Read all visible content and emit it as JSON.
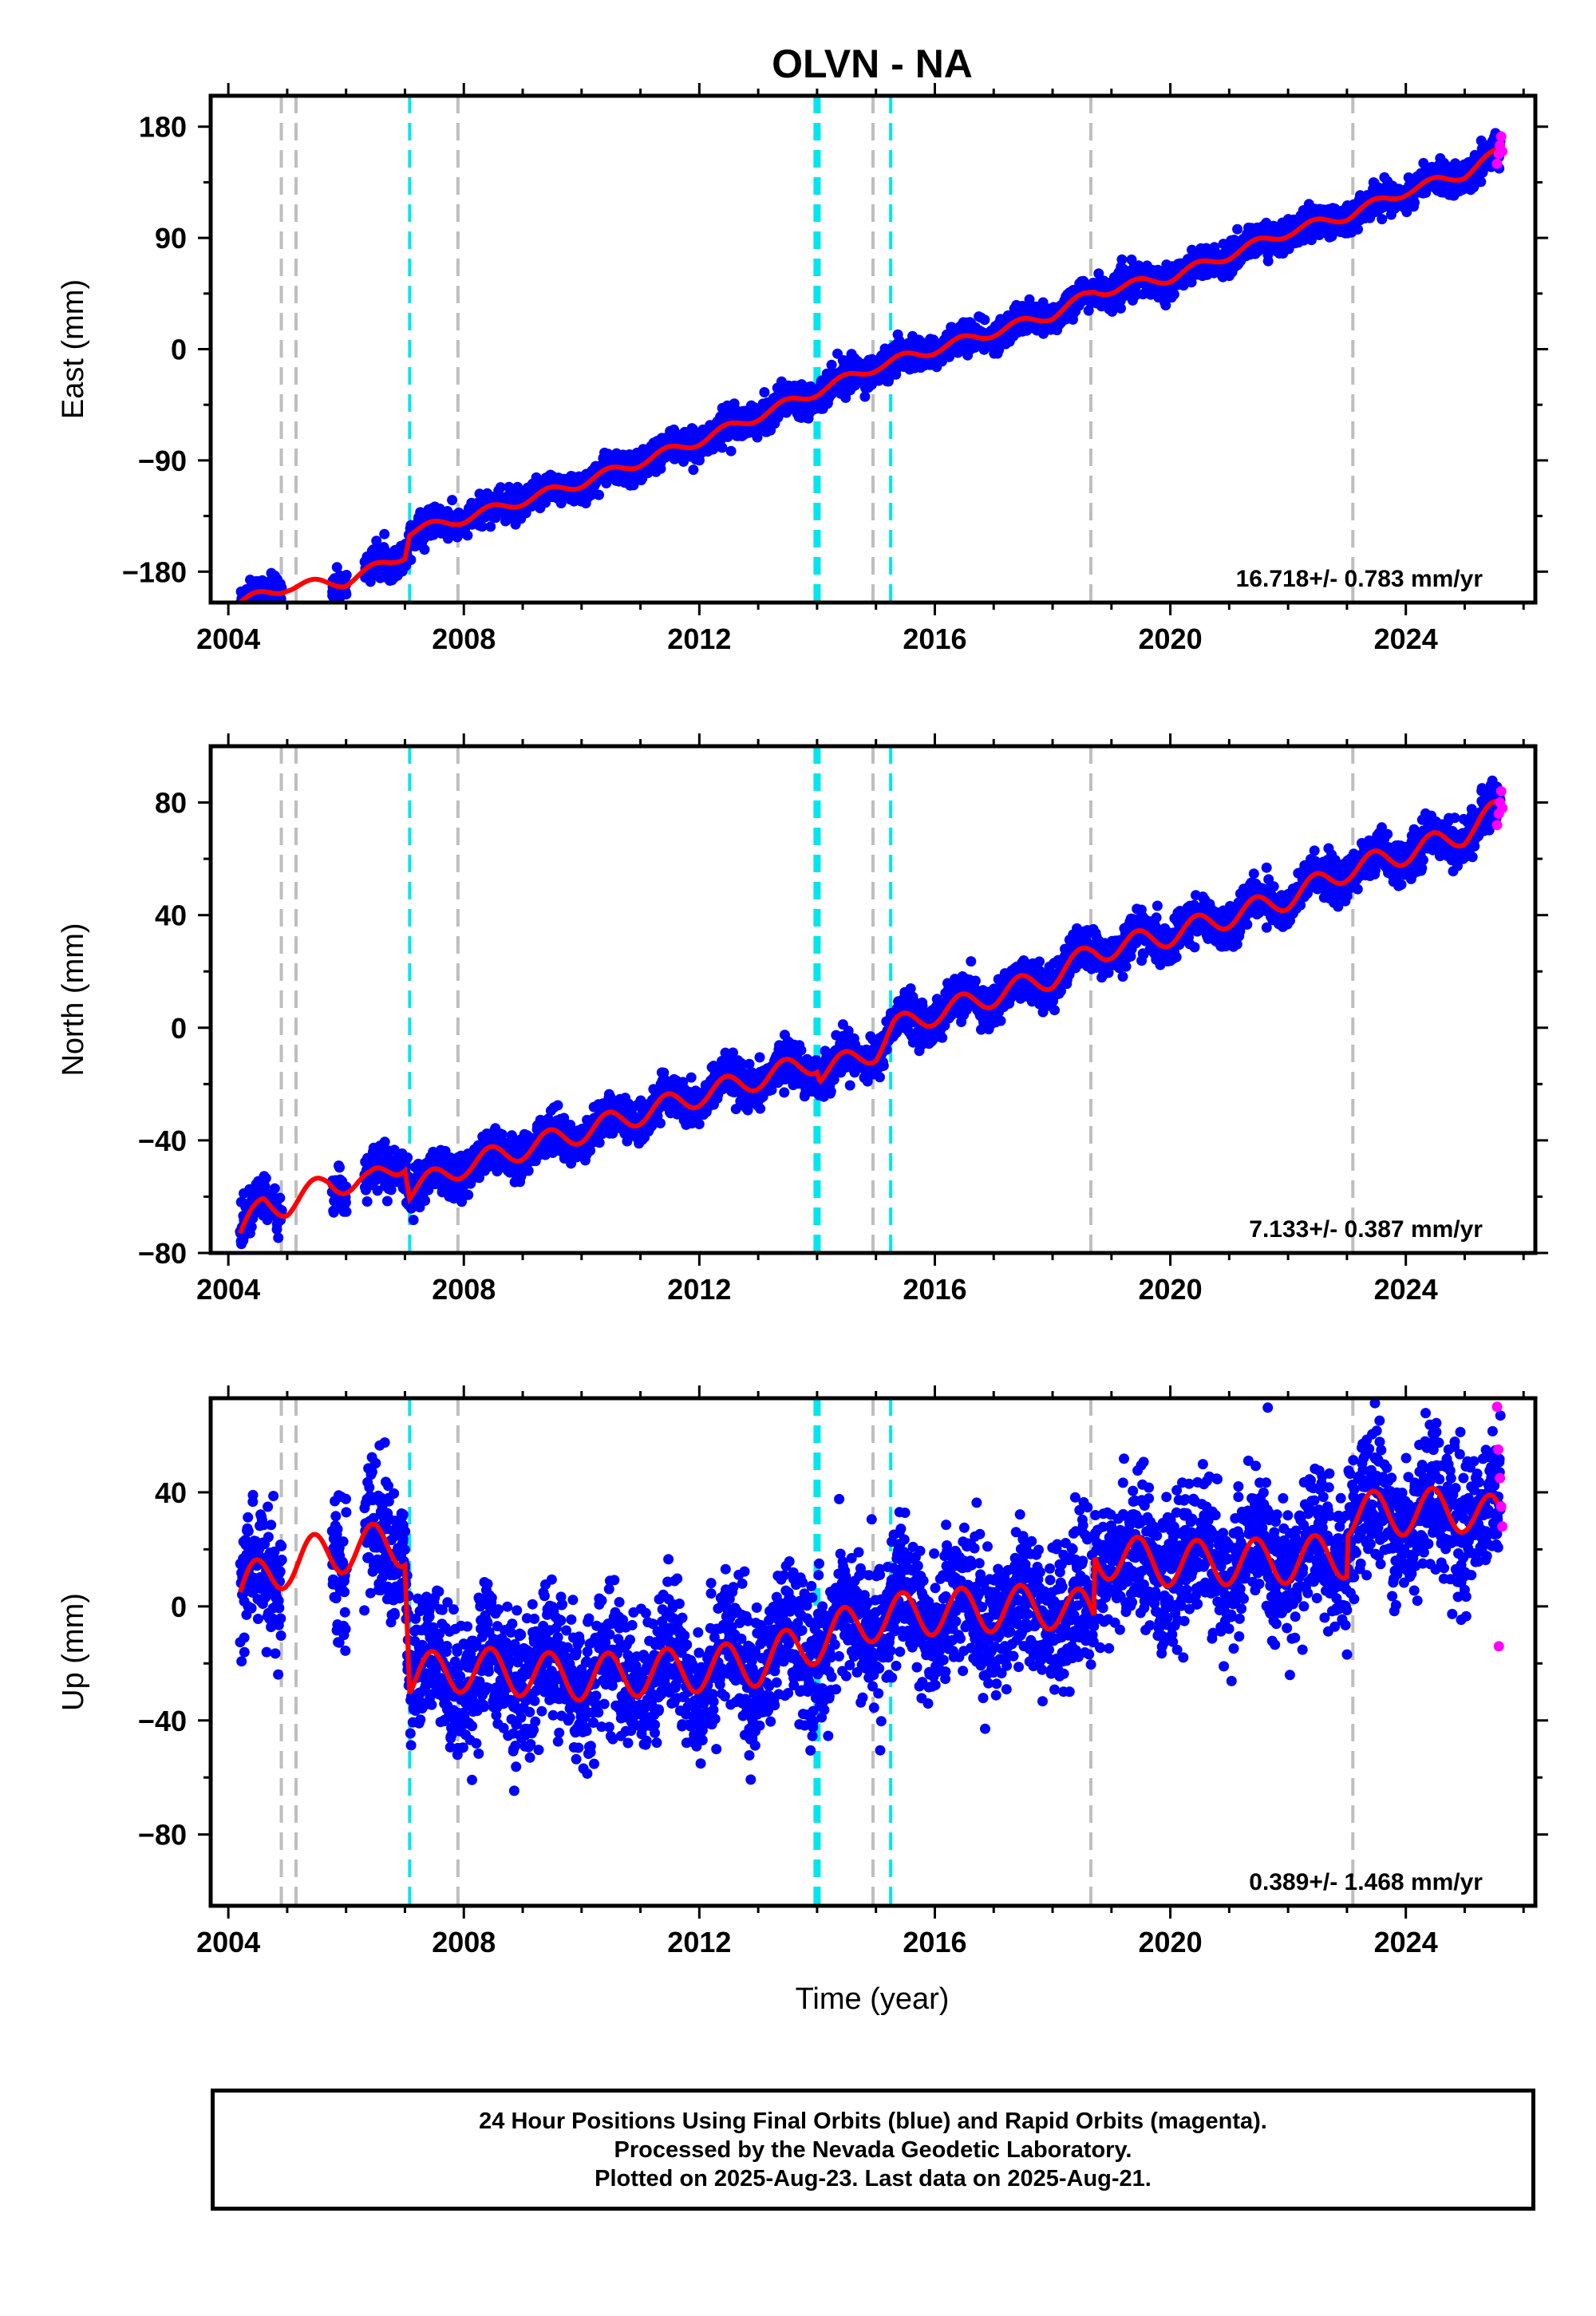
{
  "title": "OLVN - NA",
  "x_axis_label": "Time (year)",
  "colors": {
    "final_orbits": "#0000ff",
    "rapid_orbits": "#ff00ff",
    "model_fit": "#ff0000",
    "cyan_event": "#00e5ee",
    "gray_event": "#bebebe",
    "background": "#ffffff"
  },
  "chart_data": [
    {
      "type": "scatter",
      "name": "east",
      "ylabel": "East (mm)",
      "xlim": [
        2003.7,
        2026.2
      ],
      "ylim": [
        -205,
        205
      ],
      "x_ticks": [
        2004,
        2008,
        2012,
        2016,
        2020,
        2024
      ],
      "y_ticks": [
        180,
        90,
        0,
        -90,
        -180
      ],
      "y_tick_labels": [
        "180",
        "90",
        "0",
        "−90",
        "−180"
      ],
      "rate_label": "16.718+/- 0.783 mm/yr",
      "series": [
        {
          "name": "Final Orbits",
          "color": "#0000ff"
        },
        {
          "name": "Rapid Orbits",
          "color": "#ff00ff"
        },
        {
          "name": "Model",
          "color": "#ff0000"
        }
      ],
      "trend_points": [
        [
          2004.2,
          -205
        ],
        [
          2005.0,
          -192
        ],
        [
          2006.0,
          -188
        ],
        [
          2007.0,
          -166
        ],
        [
          2007.08,
          -148
        ],
        [
          2008.0,
          -137
        ],
        [
          2010.0,
          -108
        ],
        [
          2012.0,
          -74
        ],
        [
          2014.0,
          -34
        ],
        [
          2015.0,
          -14
        ],
        [
          2016.0,
          0
        ],
        [
          2018.0,
          28
        ],
        [
          2018.7,
          46
        ],
        [
          2020.0,
          58
        ],
        [
          2022.0,
          95
        ],
        [
          2023.0,
          108
        ],
        [
          2024.0,
          128
        ],
        [
          2025.0,
          142
        ],
        [
          2025.6,
          160
        ]
      ],
      "seasonal_amplitude": 4,
      "scatter_sigma": 6,
      "rapid_points": [
        [
          2025.55,
          150
        ],
        [
          2025.58,
          158
        ],
        [
          2025.6,
          165
        ],
        [
          2025.62,
          172
        ],
        [
          2025.64,
          160
        ]
      ]
    },
    {
      "type": "scatter",
      "name": "north",
      "ylabel": "North (mm)",
      "xlim": [
        2003.7,
        2026.2
      ],
      "ylim": [
        -80,
        100
      ],
      "x_ticks": [
        2004,
        2008,
        2012,
        2016,
        2020,
        2024
      ],
      "y_ticks": [
        80,
        40,
        0,
        -40,
        -80
      ],
      "y_tick_labels": [
        "80",
        "40",
        "0",
        "−40",
        "−80"
      ],
      "rate_label": "7.133+/- 0.387 mm/yr",
      "series": [
        {
          "name": "Final Orbits",
          "color": "#0000ff"
        },
        {
          "name": "Rapid Orbits",
          "color": "#ff00ff"
        },
        {
          "name": "Model",
          "color": "#ff0000"
        }
      ],
      "trend_points": [
        [
          2004.2,
          -73
        ],
        [
          2004.6,
          -63
        ],
        [
          2005.0,
          -63
        ],
        [
          2005.7,
          -55
        ],
        [
          2006.4,
          -55
        ],
        [
          2007.0,
          -47
        ],
        [
          2007.08,
          -58
        ],
        [
          2008.0,
          -49
        ],
        [
          2010.0,
          -37
        ],
        [
          2012.0,
          -24
        ],
        [
          2014.0,
          -12
        ],
        [
          2014.05,
          -16
        ],
        [
          2015.0,
          -8
        ],
        [
          2015.3,
          0
        ],
        [
          2016.0,
          5
        ],
        [
          2018.0,
          18
        ],
        [
          2018.7,
          27
        ],
        [
          2020.0,
          33
        ],
        [
          2022.0,
          46
        ],
        [
          2023.0,
          56
        ],
        [
          2024.0,
          62
        ],
        [
          2025.0,
          69
        ],
        [
          2025.6,
          78
        ]
      ],
      "seasonal_amplitude": 4,
      "scatter_sigma": 3.5,
      "rapid_points": [
        [
          2025.55,
          72
        ],
        [
          2025.58,
          76
        ],
        [
          2025.6,
          80
        ],
        [
          2025.62,
          84
        ],
        [
          2025.64,
          78
        ]
      ]
    },
    {
      "type": "scatter",
      "name": "up",
      "ylabel": "Up (mm)",
      "xlim": [
        2003.7,
        2026.2
      ],
      "ylim": [
        -105,
        73
      ],
      "x_ticks": [
        2004,
        2008,
        2012,
        2016,
        2020,
        2024
      ],
      "y_ticks": [
        40,
        0,
        -40,
        -80
      ],
      "y_tick_labels": [
        "40",
        "0",
        "−40",
        "−80"
      ],
      "rate_label": "0.389+/- 1.468 mm/yr",
      "series": [
        {
          "name": "Final Orbits",
          "color": "#0000ff"
        },
        {
          "name": "Rapid Orbits",
          "color": "#ff00ff"
        },
        {
          "name": "Model",
          "color": "#ff0000"
        }
      ],
      "trend_points": [
        [
          2004.2,
          5
        ],
        [
          2005.0,
          15
        ],
        [
          2006.0,
          20
        ],
        [
          2007.0,
          22
        ],
        [
          2007.08,
          -25
        ],
        [
          2008.0,
          -22
        ],
        [
          2010.0,
          -25
        ],
        [
          2012.0,
          -22
        ],
        [
          2013.0,
          -20
        ],
        [
          2014.0,
          -12
        ],
        [
          2015.0,
          -4
        ],
        [
          2016.0,
          -2
        ],
        [
          2018.0,
          0
        ],
        [
          2018.7,
          -3
        ],
        [
          2018.72,
          18
        ],
        [
          2020.0,
          15
        ],
        [
          2022.0,
          16
        ],
        [
          2023.0,
          18
        ],
        [
          2023.02,
          32
        ],
        [
          2024.0,
          33
        ],
        [
          2025.0,
          34
        ],
        [
          2025.6,
          30
        ]
      ],
      "seasonal_amplitude": 8,
      "scatter_sigma": 12,
      "rapid_points": [
        [
          2025.55,
          70
        ],
        [
          2025.57,
          55
        ],
        [
          2025.6,
          45
        ],
        [
          2025.62,
          35
        ],
        [
          2025.64,
          28
        ],
        [
          2025.58,
          -14
        ]
      ]
    }
  ],
  "event_lines": {
    "gray": [
      2004.9,
      2005.15,
      2007.9,
      2014.95,
      2018.65,
      2023.1
    ],
    "cyan": [
      2007.08,
      2015.25
    ],
    "cyan_thick": [
      2014.0
    ]
  },
  "footer": {
    "line1": "24 Hour Positions Using Final Orbits (blue) and Rapid Orbits (magenta).",
    "line2": "Processed by the Nevada Geodetic Laboratory.",
    "line3": "Plotted on 2025-Aug-23. Last data on 2025-Aug-21."
  }
}
